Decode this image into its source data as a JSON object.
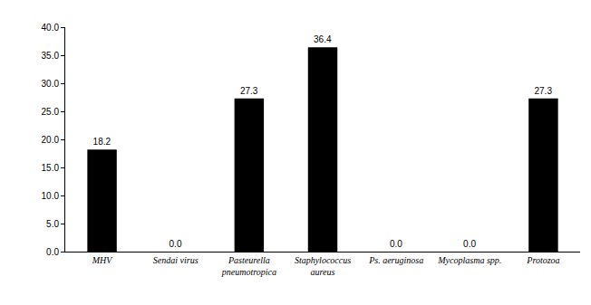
{
  "chart_data": {
    "type": "bar",
    "categories": [
      "MHV",
      "Sendai virus",
      "Pasteurella pneumotropica",
      "Staphylococcus aureus",
      "Ps. aeruginosa",
      "Mycoplasma spp.",
      "Protozoa"
    ],
    "values": [
      18.2,
      0.0,
      27.3,
      36.4,
      0.0,
      0.0,
      27.3
    ],
    "value_labels": [
      "18.2",
      "0.0",
      "27.3",
      "36.4",
      "0.0",
      "0.0",
      "27.3"
    ],
    "data_labels": true,
    "color": "#000000",
    "ylim": [
      0,
      40
    ],
    "yticks": [
      {
        "value": 0,
        "label": "0.0"
      },
      {
        "value": 5,
        "label": "5.0"
      },
      {
        "value": 10,
        "label": "10.0"
      },
      {
        "value": 15,
        "label": "15.0"
      },
      {
        "value": 20,
        "label": "20.0"
      },
      {
        "value": 25,
        "label": "25.0"
      },
      {
        "value": 30,
        "label": "30.0"
      },
      {
        "value": 35,
        "label": "35.0"
      },
      {
        "value": 40,
        "label": "40.0"
      }
    ],
    "grid": false
  }
}
